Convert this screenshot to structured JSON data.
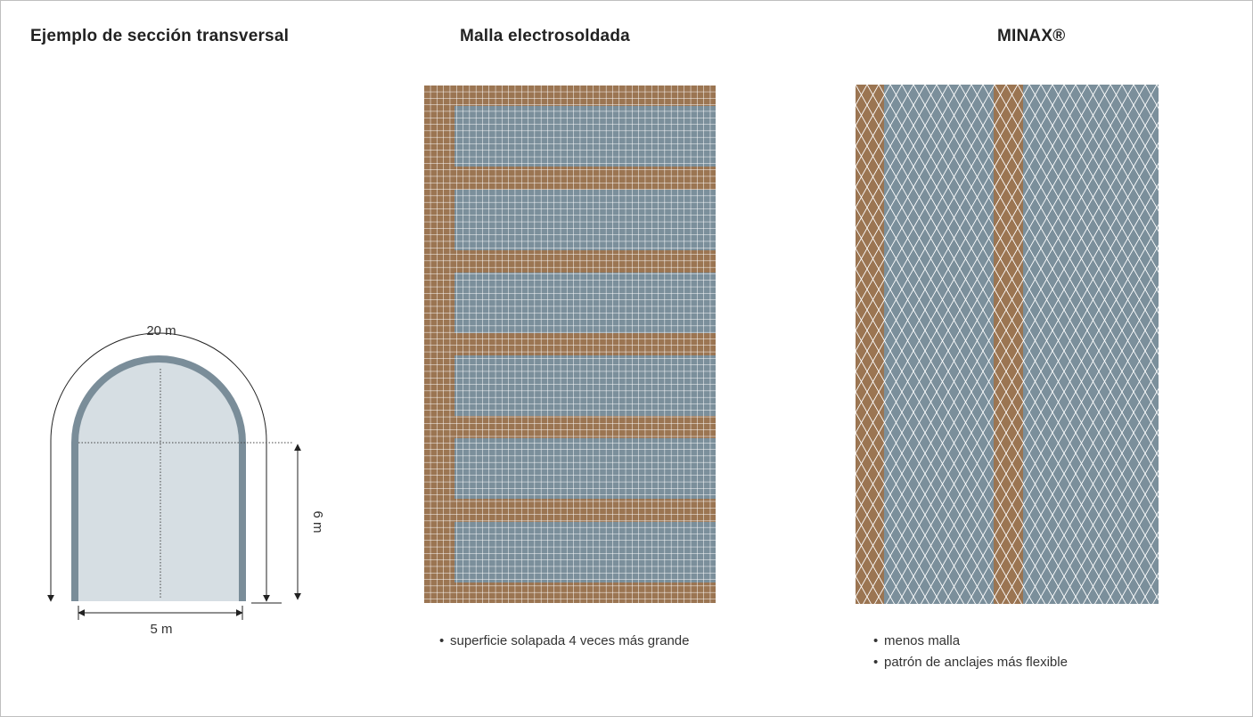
{
  "titles": {
    "cross_section": "Ejemplo de sección transversal",
    "welded_mesh": "Malla electrosoldada",
    "minax": "MINAX®"
  },
  "cross_section": {
    "arc_length_label": "20 m",
    "height_label": "6 m",
    "width_label": "5 m"
  },
  "welded_mesh": {
    "bullets": [
      "superficie solapada 4 veces más grande"
    ]
  },
  "minax": {
    "bullets": [
      "menos malla",
      "patrón de anclajes más flexible"
    ]
  },
  "colors": {
    "overlap_brown": "#9b7552",
    "mesh_blue": "#7b8f9b",
    "tunnel_fill": "#d6dee3",
    "tunnel_lining": "#7a8d99"
  }
}
